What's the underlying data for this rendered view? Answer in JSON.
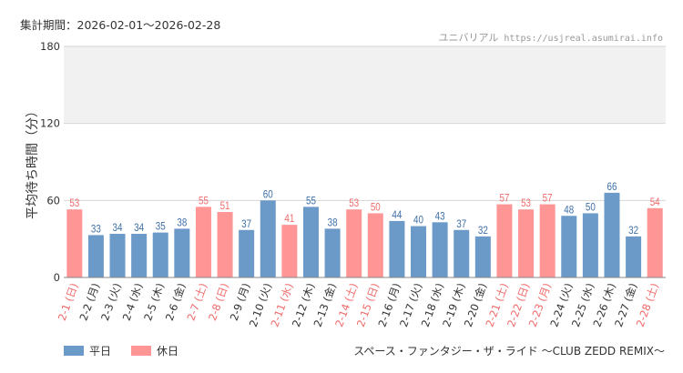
{
  "header": {
    "period_label": "集計期間：2026-02-01～2026-02-28",
    "site_name": "ユニバリアル",
    "site_url": "https://usjreal.asumirai.info"
  },
  "footer": {
    "attraction_name": "スペース・ファンタジー・ザ・ライド ～CLUB ZEDD REMIX～"
  },
  "legend": [
    {
      "label": "平日",
      "color": "#6b99c8"
    },
    {
      "label": "休日",
      "color": "#ff9595"
    }
  ],
  "colors": {
    "weekday": "#6b99c8",
    "holiday": "#ff9595",
    "weekday_label": "#3d6fa6",
    "holiday_label": "#f06a6a",
    "band": "#f1f1f1"
  },
  "chart_data": {
    "type": "bar",
    "title": "",
    "xlabel": "",
    "ylabel": "平均待ち時間（分）",
    "ylim": [
      0,
      180
    ],
    "yticks": [
      0,
      60,
      120,
      180
    ],
    "shaded_band": [
      120,
      180
    ],
    "categories": [
      "2-1 (日)",
      "2-2 (月)",
      "2-3 (火)",
      "2-4 (水)",
      "2-5 (木)",
      "2-6 (金)",
      "2-7 (土)",
      "2-8 (日)",
      "2-9 (月)",
      "2-10 (火)",
      "2-11 (水)",
      "2-12 (木)",
      "2-13 (金)",
      "2-14 (土)",
      "2-15 (日)",
      "2-16 (月)",
      "2-17 (火)",
      "2-18 (水)",
      "2-19 (木)",
      "2-20 (金)",
      "2-21 (土)",
      "2-22 (日)",
      "2-23 (月)",
      "2-24 (火)",
      "2-25 (水)",
      "2-26 (木)",
      "2-27 (金)",
      "2-28 (土)"
    ],
    "values": [
      53,
      33,
      34,
      34,
      35,
      38,
      55,
      51,
      37,
      60,
      41,
      55,
      38,
      53,
      50,
      44,
      40,
      43,
      37,
      32,
      57,
      53,
      57,
      48,
      50,
      66,
      32,
      54
    ],
    "day_type": [
      "休日",
      "平日",
      "平日",
      "平日",
      "平日",
      "平日",
      "休日",
      "休日",
      "平日",
      "平日",
      "休日",
      "平日",
      "平日",
      "休日",
      "休日",
      "平日",
      "平日",
      "平日",
      "平日",
      "平日",
      "休日",
      "休日",
      "休日",
      "平日",
      "平日",
      "平日",
      "平日",
      "休日"
    ]
  }
}
